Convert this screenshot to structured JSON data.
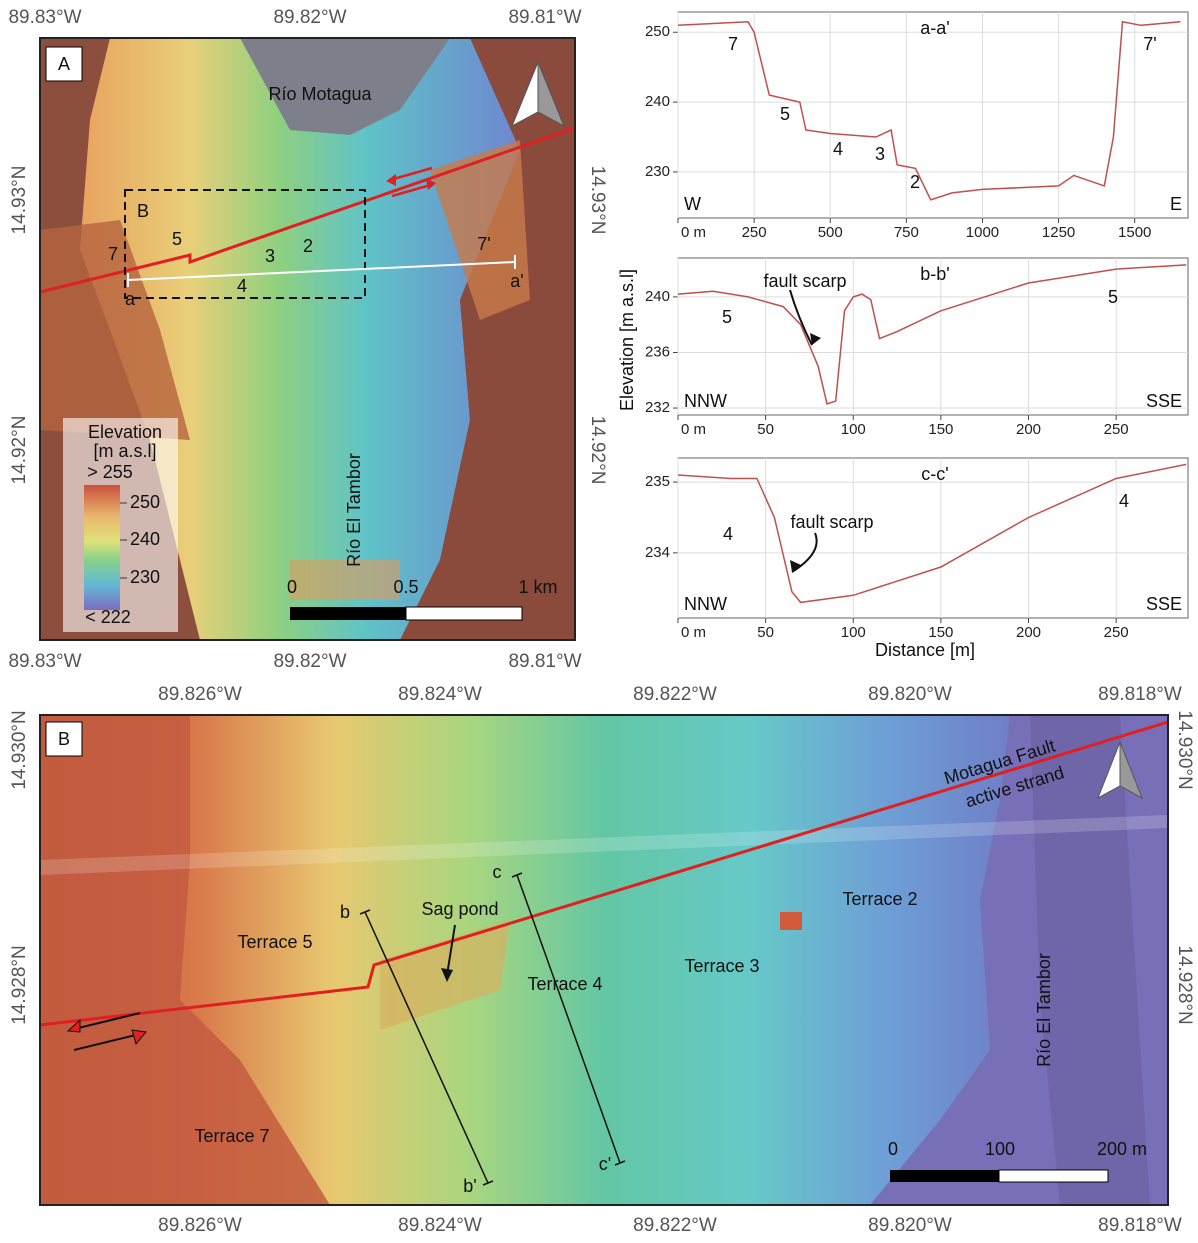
{
  "map_a": {
    "panel_label": "A",
    "top_lon_labels": [
      "89.83°W",
      "89.82°W",
      "89.81°W"
    ],
    "bottom_lon_labels": [
      "89.83°W",
      "89.82°W",
      "89.81°W"
    ],
    "left_lat_labels": [
      "14.93°N",
      "14.92°N"
    ],
    "right_lat_labels": [
      "14.93°N",
      "14.92°N"
    ],
    "river_label": "Río Motagua",
    "inset_label": "B",
    "terrace_labels": [
      "7",
      "5",
      "3",
      "2",
      "4",
      "7'"
    ],
    "profile_ends": [
      "a",
      "a'"
    ],
    "legend": {
      "title": "Elevation",
      "unit": "[m a.s.l]",
      "max_label": "> 255",
      "ticks": [
        250,
        240,
        230
      ],
      "min_label": "< 222"
    },
    "stream_label": "Río El Tambor",
    "scale_labels": [
      "0",
      "0.5",
      "1 km"
    ]
  },
  "profiles": [
    {
      "title": "a-a'",
      "color": "#c0504d",
      "x": [
        0,
        230,
        250,
        300,
        400,
        420,
        500,
        650,
        700,
        720,
        780,
        830,
        900,
        1000,
        1250,
        1300,
        1400,
        1430,
        1460,
        1520,
        1650
      ],
      "values": [
        251,
        251.5,
        250,
        241,
        240,
        236,
        235.5,
        235,
        236,
        231,
        230.5,
        226,
        227,
        227.5,
        228,
        229.5,
        228,
        235,
        251.5,
        251,
        251.5
      ],
      "xlim": [
        0,
        1675
      ],
      "ylim": [
        223.4,
        252.9
      ],
      "xticks": [
        {
          "value": 0,
          "label": "0 m"
        },
        250,
        500,
        750,
        1000,
        1250,
        1500
      ],
      "yticks": [
        230,
        240,
        250
      ],
      "annotations": [
        "7",
        "5",
        "4",
        "3",
        "2",
        "7'"
      ],
      "ends": [
        "W",
        "E"
      ]
    },
    {
      "title": "b-b'",
      "color": "#c0504d",
      "x": [
        0,
        20,
        40,
        60,
        70,
        80,
        85,
        90,
        95,
        100,
        105,
        110,
        115,
        125,
        150,
        200,
        250,
        290
      ],
      "values": [
        240.2,
        240.4,
        240,
        239.3,
        238,
        235,
        232.3,
        232.5,
        239,
        240,
        240.2,
        239.8,
        237,
        237.5,
        239,
        241,
        242,
        242.3
      ],
      "xlim": [
        0,
        291
      ],
      "ylim": [
        231.5,
        242.8
      ],
      "xticks": [
        {
          "value": 0,
          "label": "0 m"
        },
        50,
        100,
        150,
        200,
        250
      ],
      "yticks": [
        232,
        236,
        240
      ],
      "annotations": [
        "5",
        "5",
        "fault scarp"
      ],
      "ends": [
        "NNW",
        "SSE"
      ]
    },
    {
      "title": "c-c'",
      "color": "#c0504d",
      "x": [
        0,
        30,
        45,
        55,
        65,
        70,
        100,
        150,
        200,
        250,
        290
      ],
      "values": [
        235.1,
        235.05,
        235.05,
        234.5,
        233.45,
        233.3,
        233.4,
        233.8,
        234.5,
        235.05,
        235.25
      ],
      "xlim": [
        0,
        291
      ],
      "ylim": [
        233.08,
        235.34
      ],
      "xticks": [
        {
          "value": 0,
          "label": "0 m"
        },
        50,
        100,
        150,
        200,
        250
      ],
      "yticks": [
        234,
        235
      ],
      "annotations": [
        "4",
        "4",
        "fault scarp"
      ],
      "ends": [
        "NNW",
        "SSE"
      ]
    }
  ],
  "profile_axis": {
    "y_label": "Elevation [m a.s.l]",
    "x_label": "Distance [m]"
  },
  "map_b": {
    "panel_label": "B",
    "top_lon_labels": [
      "89.826°W",
      "89.824°W",
      "89.822°W",
      "89.820°W",
      "89.818°W"
    ],
    "bottom_lon_labels": [
      "89.826°W",
      "89.824°W",
      "89.822°W",
      "89.820°W",
      "89.818°W"
    ],
    "left_lat_labels": [
      "14.930°N",
      "14.928°N"
    ],
    "right_lat_labels": [
      "14.930°N",
      "14.928°N"
    ],
    "fault_label": [
      "Motagua Fault",
      "active strand"
    ],
    "terraces": [
      "Terrace 5",
      "Terrace 7",
      "Terrace 4",
      "Terrace 3",
      "Terrace 2"
    ],
    "sag_pond": "Sag pond",
    "profile_ends": [
      "b",
      "b'",
      "c",
      "c'"
    ],
    "stream_label": "Río El Tambor",
    "scale_labels": [
      "0",
      "100",
      "200 m"
    ]
  }
}
